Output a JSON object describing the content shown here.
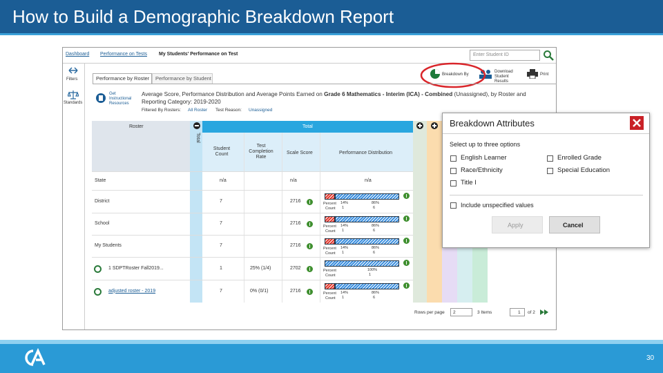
{
  "header": {
    "title": "How to Build a Demographic Breakdown Report"
  },
  "breadcrumb": [
    "Dashboard",
    "Performance on Tests",
    "My Students' Performance on Test"
  ],
  "search": {
    "placeholder": "Enter Student ID"
  },
  "sidebar": [
    "Filters",
    "Standards"
  ],
  "tabs": [
    "Performance by Roster",
    "Performance by Student"
  ],
  "toolbar": [
    "Breakdown By",
    "Download Student Results",
    "Print"
  ],
  "report": {
    "icon_label": "Get Instructional Resources",
    "title_prefix": "Average Score, Performance Distribution and Average Points Earned on",
    "title_bold": "Grade 6 Mathematics - Interim (ICA) - Combined",
    "title_suffix": "(Unassigned), by Roster and Reporting Category: 2019-2020",
    "filter_label": "Filtered By Rosters:",
    "filter_value": "All Roster",
    "reason_label": "Test Reason:",
    "reason_value": "Unassigned"
  },
  "table": {
    "headers": {
      "roster": "Roster",
      "total_vertical": "Total",
      "group": "Total",
      "count": "Student Count",
      "rate": "Test Completion Rate",
      "score": "Scale Score",
      "perf": "Performance Distribution"
    },
    "percent_label": "Percent",
    "count_label": "Count",
    "rows": [
      {
        "roster": "State",
        "count": "n/a",
        "score": "n/a",
        "perf_text": "n/a"
      },
      {
        "roster": "District",
        "count": 7,
        "score": 2716,
        "perf": {
          "percent": [
            14,
            86
          ],
          "percent_labels": [
            "14%",
            "86%"
          ],
          "count": [
            1,
            6
          ]
        }
      },
      {
        "roster": "School",
        "count": 7,
        "score": 2716,
        "perf": {
          "percent": [
            14,
            86
          ],
          "percent_labels": [
            "14%",
            "86%"
          ],
          "count": [
            1,
            6
          ]
        }
      },
      {
        "roster": "My Students",
        "count": 7,
        "score": 2716,
        "perf": {
          "percent": [
            14,
            86
          ],
          "percent_labels": [
            "14%",
            "86%"
          ],
          "count": [
            1,
            6
          ]
        }
      },
      {
        "roster": "1 SDPTRoster Fall2019...",
        "count": 1,
        "rate": "25% (1/4)",
        "score": 2702,
        "perf": {
          "percent": [
            100
          ],
          "percent_labels": [
            "100%"
          ],
          "count": [
            1
          ]
        }
      },
      {
        "roster": "adjusted roster - 2019",
        "count": 7,
        "rate": "0% (0/1)",
        "score": 2716,
        "perf": {
          "percent": [
            14,
            86
          ],
          "percent_labels": [
            "14%",
            "86%"
          ],
          "count": [
            1,
            6
          ]
        }
      }
    ]
  },
  "pagination": {
    "rows_label": "Rows per page",
    "rows": 2,
    "items": "3 Items",
    "page": 1,
    "of": "of 2"
  },
  "modal": {
    "title": "Breakdown Attributes",
    "instruction": "Select up to three options",
    "options": [
      "English Learner",
      "Enrolled Grade",
      "Race/Ethnicity",
      "Special Education",
      "Title I"
    ],
    "unspecified": "Include unspecified values",
    "apply": "Apply",
    "cancel": "Cancel"
  },
  "footer": {
    "page_number": "30"
  }
}
